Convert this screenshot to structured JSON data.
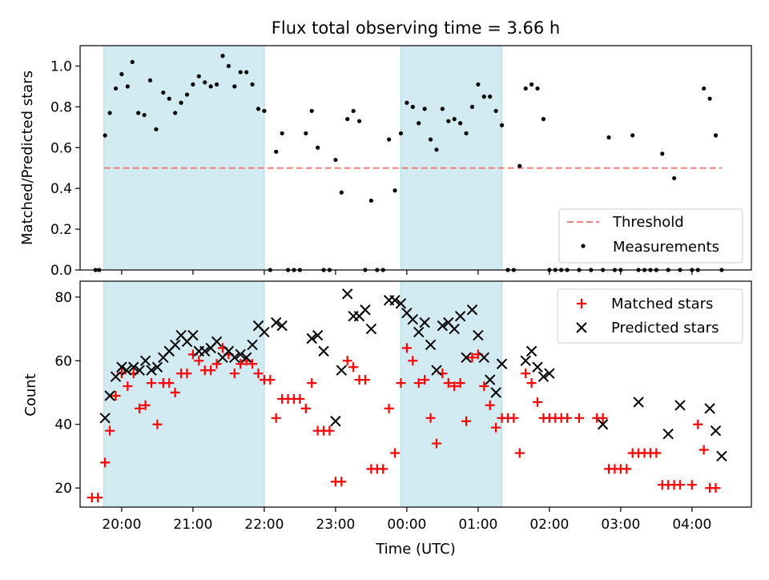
{
  "figure": {
    "title": "Flux total observing time = 3.66 h"
  },
  "colors": {
    "shade": "#add8e6",
    "threshold": "#f08080",
    "matched": "#ff0000",
    "predicted": "#000000",
    "measurement": "#000000"
  },
  "chart_data": [
    {
      "type": "scatter",
      "panel": "top",
      "ylabel": "Matched/Predicted stars",
      "xlabel": "",
      "ylim": [
        0,
        1.1
      ],
      "yticks": [
        0,
        0.2,
        0.4,
        0.6,
        0.8,
        1.0
      ],
      "ytick_labels": [
        "0.0",
        "0.2",
        "0.4",
        "0.6",
        "0.8",
        "1.0"
      ],
      "xlim": [
        "19:25",
        "04:50"
      ],
      "shaded_intervals": [
        [
          "19:45",
          "22:00"
        ],
        [
          "23:55",
          "01:20"
        ]
      ],
      "legend": {
        "placement": "lower right",
        "entries": [
          "Threshold",
          "Measurements"
        ]
      },
      "threshold": {
        "name": "Threshold",
        "value": 0.5,
        "x": [
          "19:45",
          "04:25"
        ]
      },
      "series": [
        {
          "name": "Measurements",
          "x": [
            "19:38",
            "19:41",
            "19:46",
            "19:50",
            "19:55",
            "20:00",
            "20:05",
            "20:09",
            "20:14",
            "20:19",
            "20:24",
            "20:29",
            "20:35",
            "20:40",
            "20:45",
            "20:50",
            "20:55",
            "21:00",
            "21:05",
            "21:10",
            "21:15",
            "21:20",
            "21:25",
            "21:30",
            "21:35",
            "21:40",
            "21:45",
            "21:50",
            "21:55",
            "22:00",
            "22:05",
            "22:10",
            "22:15",
            "22:20",
            "22:25",
            "22:30",
            "22:35",
            "22:40",
            "22:45",
            "22:50",
            "22:55",
            "23:00",
            "23:05",
            "23:10",
            "23:15",
            "23:20",
            "23:25",
            "23:30",
            "23:35",
            "23:40",
            "23:45",
            "23:50",
            "23:55",
            "00:00",
            "00:05",
            "00:10",
            "00:15",
            "00:20",
            "00:25",
            "00:30",
            "00:35",
            "00:40",
            "00:45",
            "00:50",
            "00:55",
            "01:00",
            "01:05",
            "01:10",
            "01:15",
            "01:20",
            "01:25",
            "01:30",
            "01:35",
            "01:40",
            "01:45",
            "01:50",
            "01:55",
            "02:00",
            "02:05",
            "02:10",
            "02:15",
            "02:25",
            "02:35",
            "02:45",
            "02:50",
            "02:55",
            "03:00",
            "03:10",
            "03:15",
            "03:20",
            "03:25",
            "03:30",
            "03:35",
            "03:40",
            "03:45",
            "03:50",
            "04:00",
            "04:05",
            "04:10",
            "04:15",
            "04:20",
            "04:25"
          ],
          "y": [
            0,
            0,
            0.66,
            0.77,
            0.89,
            0.96,
            0.9,
            1.02,
            0.77,
            0.76,
            0.93,
            0.69,
            0.87,
            0.84,
            0.77,
            0.82,
            0.86,
            0.91,
            0.95,
            0.92,
            0.9,
            0.91,
            1.05,
            1.0,
            0.9,
            0.97,
            0.97,
            0.91,
            0.79,
            0.78,
            0,
            0.58,
            0.67,
            0,
            0,
            0,
            0.67,
            0.78,
            0.6,
            0,
            0,
            0.54,
            0.38,
            0.74,
            0.78,
            0.73,
            0,
            0.34,
            0,
            0,
            0.64,
            0.39,
            0.67,
            0.82,
            0.8,
            0.72,
            0.79,
            0.64,
            0.59,
            0.79,
            0.73,
            0.74,
            0.72,
            0.67,
            0.8,
            0.91,
            0.85,
            0.85,
            0.78,
            0.71,
            0,
            0,
            0.51,
            0.89,
            0.91,
            0.89,
            0.74,
            0,
            0,
            0,
            0,
            0,
            0,
            0,
            0.65,
            0,
            0,
            0.66,
            0,
            0,
            0,
            0,
            0.57,
            0,
            0.45,
            0,
            0,
            0,
            0.89,
            0.84,
            0.66,
            0
          ]
        }
      ]
    },
    {
      "type": "scatter",
      "panel": "bottom",
      "ylabel": "Count",
      "xlabel": "Time (UTC)",
      "ylim": [
        14,
        85
      ],
      "yticks": [
        20,
        40,
        60,
        80
      ],
      "ytick_labels": [
        "20",
        "40",
        "60",
        "80"
      ],
      "xlim": [
        "19:25",
        "04:50"
      ],
      "xticks": [
        "20:00",
        "21:00",
        "22:00",
        "23:00",
        "00:00",
        "01:00",
        "02:00",
        "03:00",
        "04:00"
      ],
      "shaded_intervals": [
        [
          "19:45",
          "22:00"
        ],
        [
          "23:55",
          "01:20"
        ]
      ],
      "legend": {
        "placement": "upper right",
        "entries": [
          "Matched stars",
          "Predicted stars"
        ]
      },
      "series": [
        {
          "name": "Matched stars",
          "marker": "plus",
          "x": [
            "19:35",
            "19:40",
            "19:46",
            "19:50",
            "19:55",
            "20:00",
            "20:05",
            "20:10",
            "20:15",
            "20:20",
            "20:25",
            "20:30",
            "20:35",
            "20:40",
            "20:45",
            "20:50",
            "20:55",
            "21:00",
            "21:05",
            "21:10",
            "21:15",
            "21:20",
            "21:25",
            "21:30",
            "21:35",
            "21:40",
            "21:45",
            "21:50",
            "21:55",
            "22:00",
            "22:05",
            "22:10",
            "22:15",
            "22:20",
            "22:25",
            "22:30",
            "22:35",
            "22:40",
            "22:45",
            "22:50",
            "22:55",
            "23:00",
            "23:05",
            "23:10",
            "23:15",
            "23:20",
            "23:25",
            "23:30",
            "23:35",
            "23:40",
            "23:45",
            "23:50",
            "23:55",
            "00:00",
            "00:05",
            "00:10",
            "00:15",
            "00:20",
            "00:25",
            "00:30",
            "00:35",
            "00:40",
            "00:45",
            "00:50",
            "00:55",
            "01:00",
            "01:05",
            "01:10",
            "01:15",
            "01:20",
            "01:25",
            "01:30",
            "01:35",
            "01:40",
            "01:45",
            "01:50",
            "01:55",
            "02:00",
            "02:05",
            "02:10",
            "02:15",
            "02:25",
            "02:40",
            "02:45",
            "02:50",
            "02:55",
            "03:00",
            "03:05",
            "03:10",
            "03:15",
            "03:20",
            "03:25",
            "03:30",
            "03:35",
            "03:40",
            "03:45",
            "03:50",
            "04:00",
            "04:05",
            "04:10",
            "04:15",
            "04:20"
          ],
          "y": [
            17,
            17,
            28,
            38,
            49,
            56,
            52,
            56,
            45,
            46,
            53,
            40,
            53,
            53,
            50,
            56,
            56,
            62,
            60,
            57,
            57,
            59,
            64,
            62,
            56,
            59,
            60,
            59,
            56,
            54,
            54,
            42,
            48,
            48,
            48,
            48,
            45,
            53,
            38,
            38,
            38,
            22,
            22,
            60,
            58,
            54,
            54,
            26,
            26,
            26,
            45,
            31,
            53,
            64,
            60,
            53,
            54,
            42,
            34,
            56,
            53,
            52,
            53,
            41,
            61,
            62,
            52,
            46,
            39,
            42,
            42,
            42,
            31,
            56,
            53,
            47,
            42,
            42,
            42,
            42,
            42,
            42,
            42,
            42,
            26,
            26,
            26,
            26,
            31,
            31,
            31,
            31,
            31,
            21,
            21,
            21,
            21,
            21,
            40,
            32,
            20,
            20
          ]
        },
        {
          "name": "Predicted stars",
          "marker": "x",
          "x": [
            "19:46",
            "19:50",
            "19:55",
            "20:00",
            "20:04",
            "20:10",
            "20:15",
            "20:20",
            "20:25",
            "20:30",
            "20:35",
            "20:40",
            "20:45",
            "20:50",
            "20:55",
            "21:00",
            "21:05",
            "21:10",
            "21:15",
            "21:20",
            "21:25",
            "21:30",
            "21:35",
            "21:40",
            "21:45",
            "21:50",
            "21:55",
            "22:00",
            "22:10",
            "22:15",
            "22:40",
            "22:45",
            "22:50",
            "23:00",
            "23:05",
            "23:10",
            "23:15",
            "23:20",
            "23:25",
            "23:30",
            "23:45",
            "23:50",
            "23:55",
            "00:00",
            "00:05",
            "00:10",
            "00:15",
            "00:20",
            "00:25",
            "00:30",
            "00:35",
            "00:40",
            "00:45",
            "00:50",
            "00:55",
            "01:00",
            "01:05",
            "01:10",
            "01:15",
            "01:20",
            "01:40",
            "01:45",
            "01:50",
            "01:55",
            "02:00",
            "02:45",
            "03:15",
            "03:40",
            "03:50",
            "04:15",
            "04:20",
            "04:25"
          ],
          "y": [
            42,
            49,
            55,
            58,
            57,
            58,
            57,
            60,
            57,
            58,
            61,
            63,
            65,
            68,
            66,
            68,
            63,
            63,
            64,
            66,
            61,
            63,
            61,
            62,
            61,
            65,
            71,
            69,
            72,
            71,
            67,
            68,
            63,
            41,
            57,
            81,
            74,
            74,
            76,
            70,
            79,
            79,
            78,
            75,
            73,
            69,
            72,
            65,
            57,
            71,
            72,
            70,
            74,
            61,
            76,
            68,
            61,
            54,
            50,
            59,
            60,
            63,
            58,
            55,
            56,
            40,
            47,
            37,
            46,
            45,
            38,
            30
          ]
        }
      ]
    }
  ]
}
